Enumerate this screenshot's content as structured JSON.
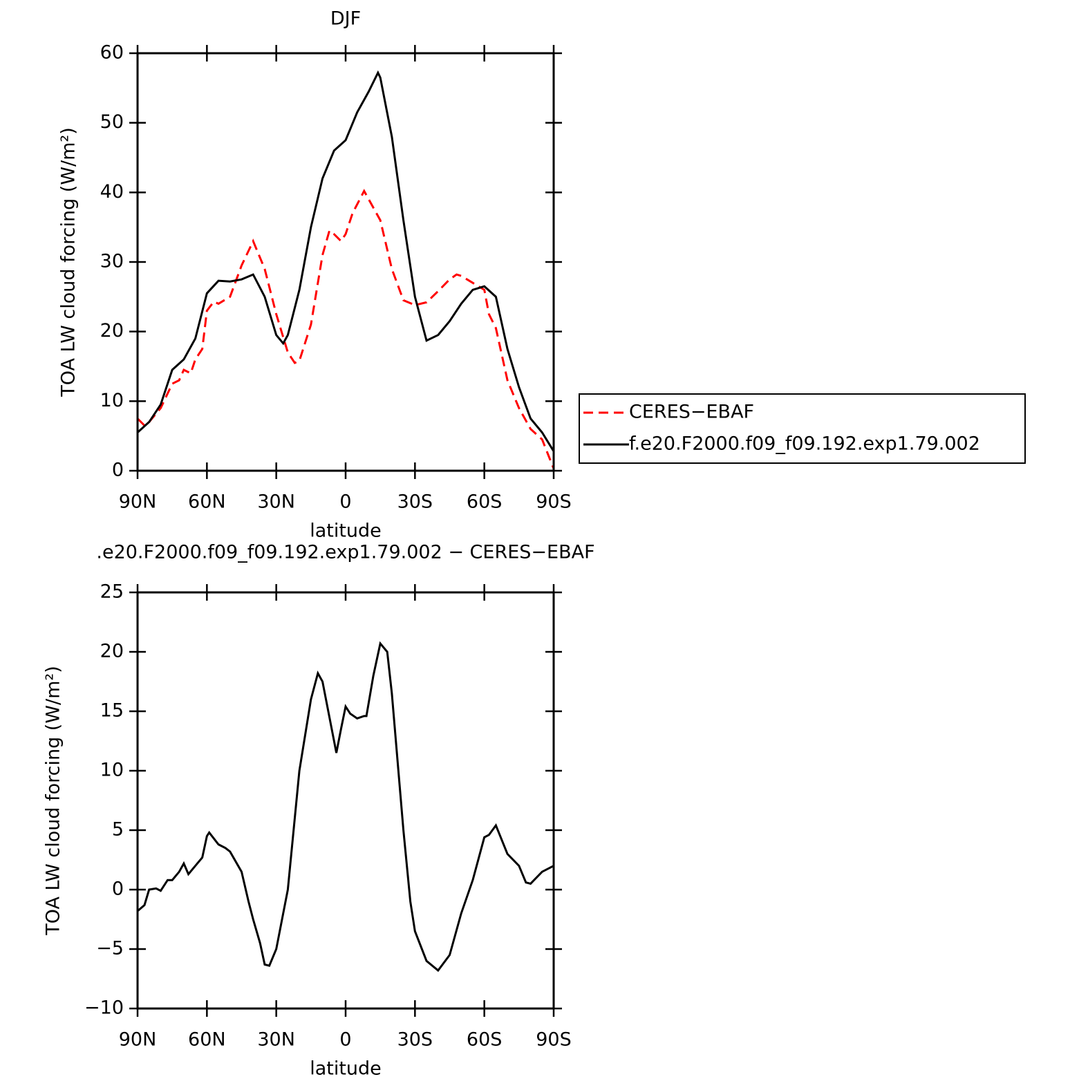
{
  "chart_data": [
    {
      "type": "line",
      "title": "DJF",
      "xlabel": "latitude",
      "ylabel": "TOA LW cloud forcing (W/m²)",
      "xlim": [
        90,
        -90
      ],
      "ylim": [
        0,
        60
      ],
      "xticks": [
        {
          "value": 90,
          "label": "90N"
        },
        {
          "value": 60,
          "label": "60N"
        },
        {
          "value": 30,
          "label": "30N"
        },
        0,
        {
          "value": -30,
          "label": "30S"
        },
        {
          "value": -60,
          "label": "60S"
        },
        {
          "value": -90,
          "label": "90S"
        }
      ],
      "yticks": [
        0,
        10,
        20,
        30,
        40,
        50,
        60
      ],
      "legend": "right",
      "series": [
        {
          "name": "CERES−EBAF",
          "color": "#ff0000",
          "dash": true,
          "x": [
            90,
            87,
            85,
            80,
            75,
            72,
            70,
            67,
            65,
            62,
            60,
            57,
            55,
            50,
            45,
            40,
            35,
            30,
            25,
            22,
            20,
            15,
            10,
            7,
            5,
            2,
            0,
            -3,
            -8,
            -10,
            -15,
            -20,
            -25,
            -30,
            -35,
            -40,
            -45,
            -48,
            -50,
            -55,
            -60,
            -62,
            -65,
            -70,
            -75,
            -80,
            -85,
            -90
          ],
          "values": [
            7.5,
            6.5,
            7,
            9,
            12.5,
            13,
            14.5,
            14,
            16,
            17.5,
            23,
            24.3,
            24,
            25,
            29.5,
            33,
            29,
            22.5,
            17,
            15.5,
            15.8,
            21,
            31,
            34.5,
            34,
            33,
            34,
            37,
            40.2,
            39,
            36,
            29,
            24.5,
            23.8,
            24.2,
            25.8,
            27.5,
            28.2,
            28,
            27,
            26,
            22.5,
            20.5,
            13,
            9,
            6,
            4.5,
            0.3
          ]
        },
        {
          "name": "f.e20.F2000.f09_f09.192.exp1.79.002",
          "color": "#000000",
          "dash": false,
          "x": [
            90,
            85,
            80,
            75,
            70,
            65,
            60,
            55,
            50,
            45,
            40,
            35,
            30,
            27,
            25,
            20,
            15,
            10,
            5,
            0,
            -5,
            -10,
            -14,
            -15,
            -20,
            -25,
            -30,
            -35,
            -40,
            -45,
            -50,
            -55,
            -60,
            -65,
            -70,
            -75,
            -80,
            -85,
            -90
          ],
          "values": [
            5.5,
            7,
            9.5,
            14.5,
            16,
            19,
            25.5,
            27.3,
            27.2,
            27.5,
            28.2,
            25,
            19.5,
            18.3,
            19.5,
            26,
            35,
            42,
            46,
            47.5,
            51.5,
            54.5,
            57.2,
            56.5,
            48,
            36,
            25,
            18.7,
            19.5,
            21.5,
            24,
            26,
            26.5,
            25,
            17.5,
            12,
            7.5,
            5.5,
            2.8
          ]
        }
      ]
    },
    {
      "type": "line",
      "title": ".e20.F2000.f09_f09.192.exp1.79.002 − CERES−EBAF",
      "xlabel": "latitude",
      "ylabel": "TOA LW cloud forcing (W/m²)",
      "xlim": [
        90,
        -90
      ],
      "ylim": [
        -10,
        25
      ],
      "xticks": [
        {
          "value": 90,
          "label": "90N"
        },
        {
          "value": 60,
          "label": "60N"
        },
        {
          "value": 30,
          "label": "30N"
        },
        0,
        {
          "value": -30,
          "label": "30S"
        },
        {
          "value": -60,
          "label": "60S"
        },
        {
          "value": -90,
          "label": "90S"
        }
      ],
      "yticks": [
        {
          "value": -10,
          "label": "−10"
        },
        {
          "value": -5,
          "label": "−5"
        },
        0,
        5,
        10,
        15,
        20,
        25
      ],
      "series": [
        {
          "color": "#000000",
          "dash": false,
          "x": [
            90,
            87,
            85,
            82,
            80,
            77,
            75,
            72,
            70,
            68,
            65,
            62,
            60,
            59,
            55,
            52,
            50,
            45,
            42,
            40,
            37,
            35,
            33,
            30,
            25,
            20,
            15,
            12,
            10,
            5,
            4,
            2,
            0,
            -2,
            -5,
            -8,
            -9,
            -12,
            -15,
            -18,
            -20,
            -25,
            -28,
            -30,
            -35,
            -40,
            -45,
            -50,
            -55,
            -60,
            -62,
            -65,
            -70,
            -75,
            -78,
            -80,
            -85,
            -90
          ],
          "values": [
            -1.8,
            -1.3,
            0,
            0.1,
            -0.1,
            0.8,
            0.8,
            1.5,
            2.2,
            1.3,
            2,
            2.7,
            4.5,
            4.8,
            3.8,
            3.5,
            3.2,
            1.5,
            -1,
            -2.5,
            -4.5,
            -6.3,
            -6.4,
            -5,
            0,
            10,
            16,
            18.2,
            17.5,
            12.5,
            11.5,
            13.5,
            15.4,
            14.8,
            14.4,
            14.6,
            14.6,
            18,
            20.7,
            20,
            16.5,
            5,
            -1,
            -3.5,
            -6,
            -6.8,
            -5.5,
            -2,
            0.8,
            4.4,
            4.6,
            5.4,
            3,
            2,
            0.6,
            0.5,
            1.5,
            2
          ]
        }
      ]
    }
  ]
}
